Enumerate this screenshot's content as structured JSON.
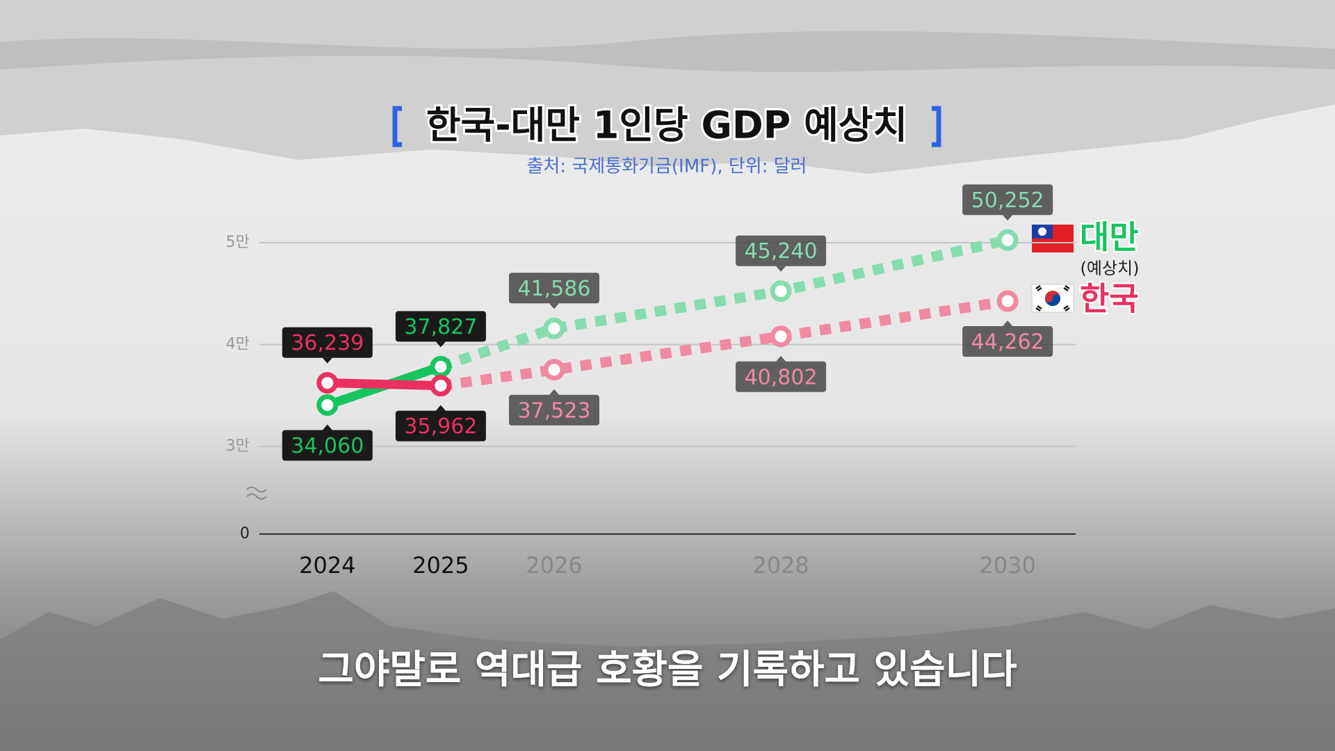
{
  "chart_data": {
    "type": "line",
    "title": "한국-대만 1인당 GDP 예상치",
    "subtitle": "출처: 국제통화기금(IMF), 단위: 달러",
    "x": [
      2024,
      2025,
      2026,
      2028,
      2030
    ],
    "xlim": [
      2023.4,
      2030.6
    ],
    "ylim": [
      0,
      50000
    ],
    "yticks": [
      {
        "value": 0,
        "label": "0"
      },
      {
        "value": 30000,
        "label": "3만"
      },
      {
        "value": 40000,
        "label": "4만"
      },
      {
        "value": 50000,
        "label": "5만"
      }
    ],
    "axis_break": true,
    "grid": true,
    "forecast_from": 2025,
    "forecast_label": "(예상치)",
    "series": [
      {
        "name": "대만",
        "color": "#17c45f",
        "forecast_color": "#86dcae",
        "values": [
          34060,
          37827,
          41586,
          45240,
          50252
        ],
        "value_labels": [
          "34,060",
          "37,827",
          "41,586",
          "45,240",
          "50,252"
        ]
      },
      {
        "name": "한국",
        "color": "#ea3060",
        "forecast_color": "#f08aa2",
        "values": [
          36239,
          35962,
          37523,
          40802,
          44262
        ],
        "value_labels": [
          "36,239",
          "35,962",
          "37,523",
          "40,802",
          "44,262"
        ]
      }
    ],
    "caption": "그야말로 역대급 호황을 기록하고 있습니다"
  }
}
